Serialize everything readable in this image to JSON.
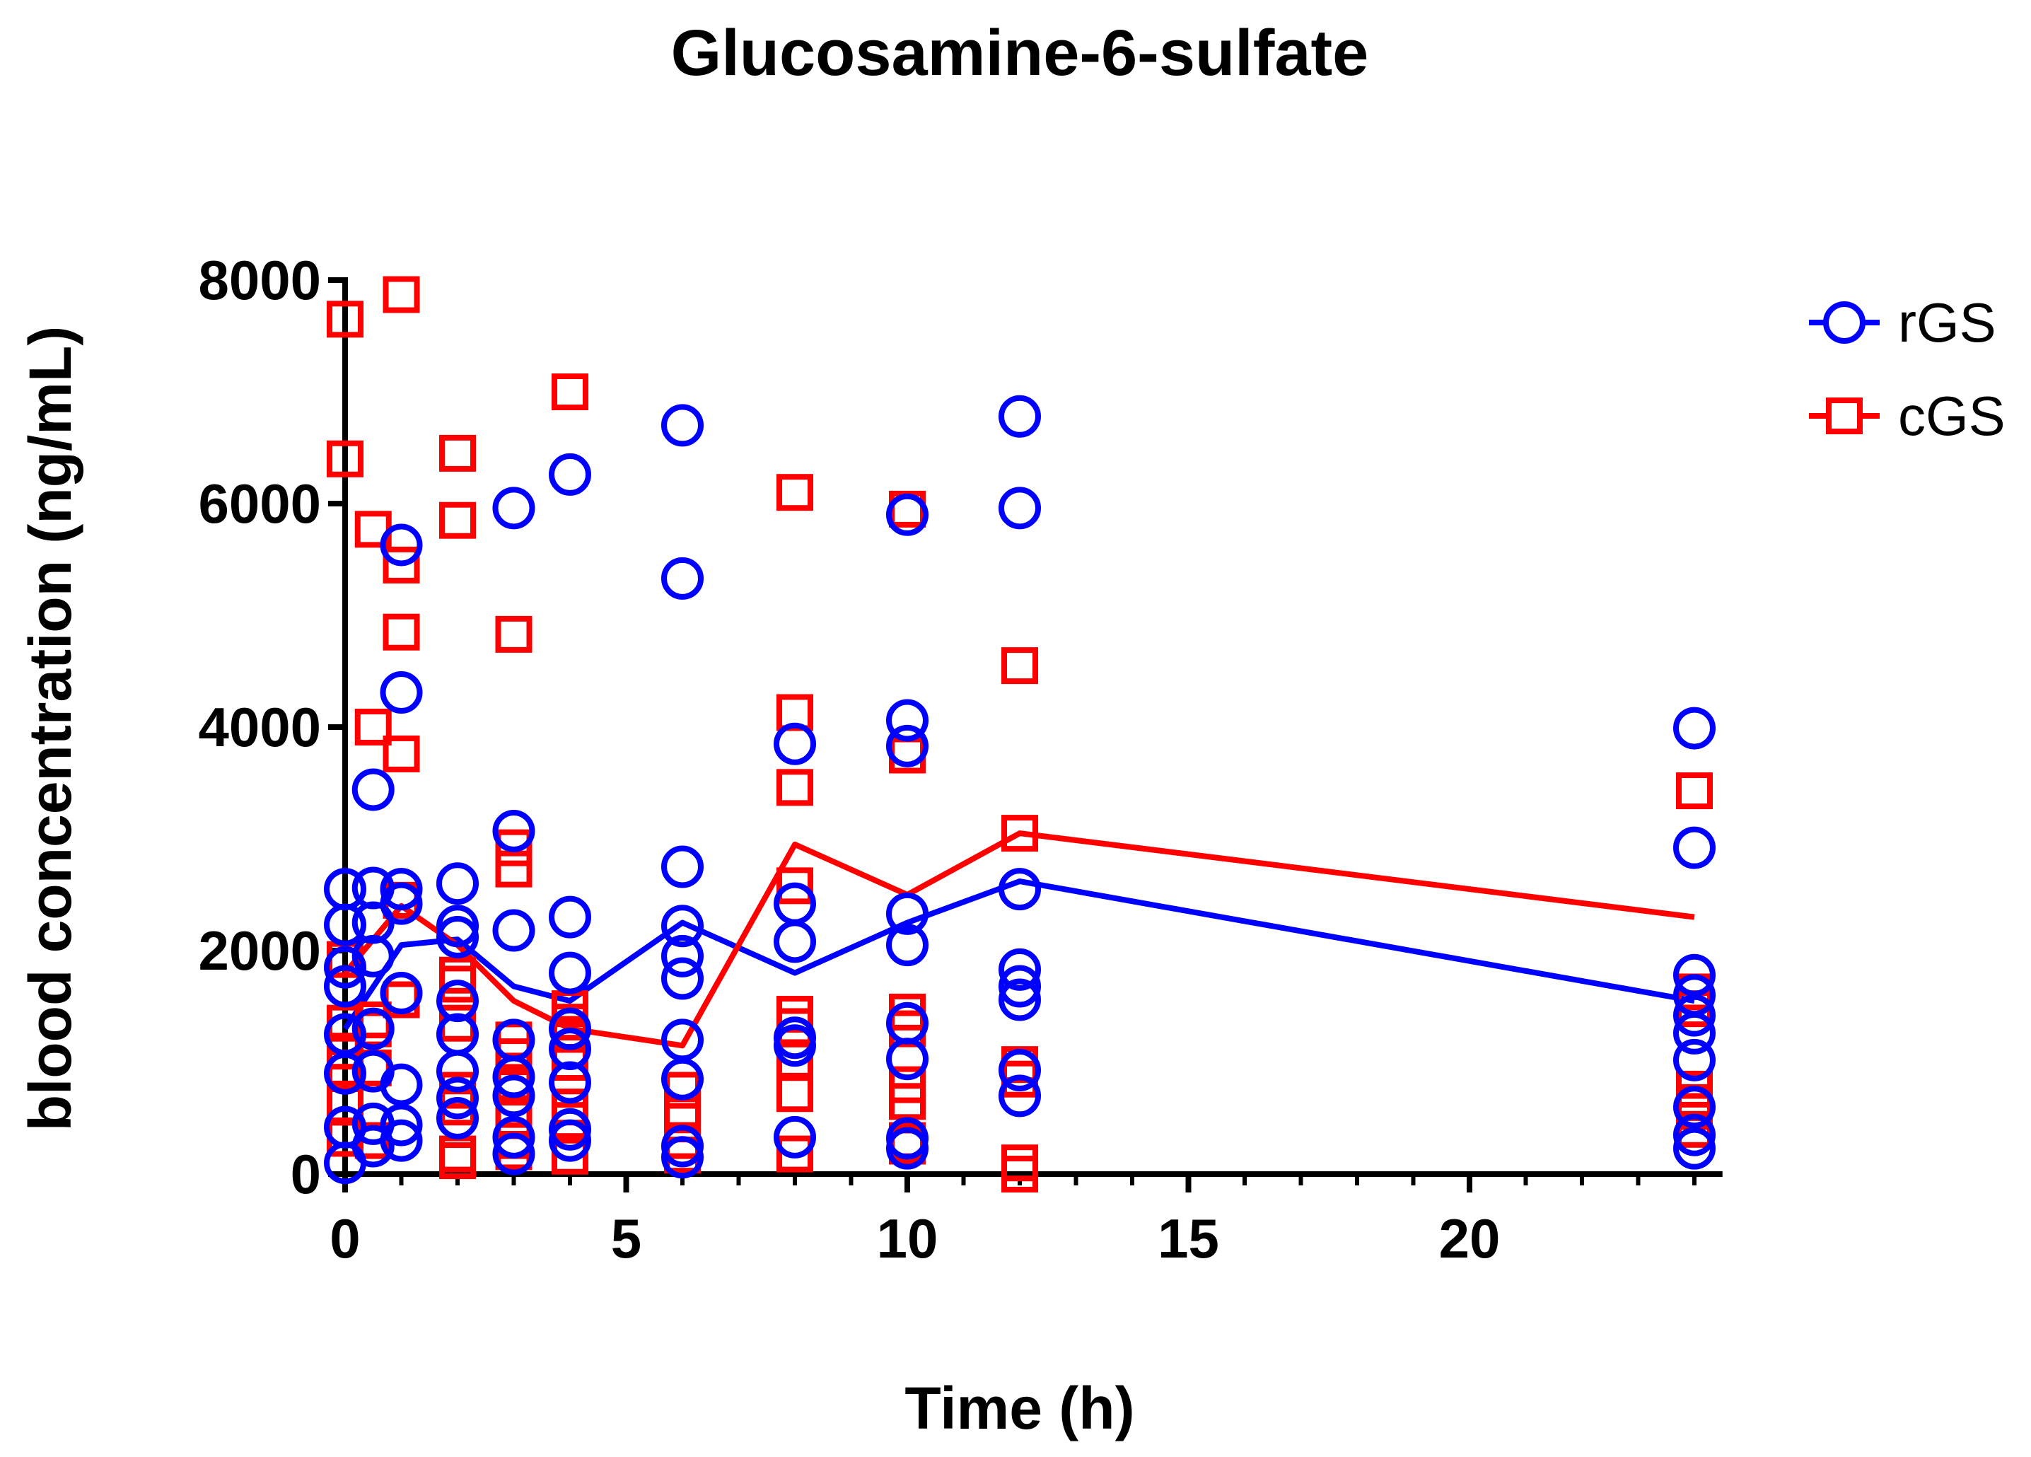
{
  "chart_data": {
    "type": "scatter",
    "title": "Glucosamine-6-sulfate",
    "xlabel": "Time (h)",
    "ylabel": "blood concentration (ng/mL)",
    "xlim": [
      0,
      24.5
    ],
    "ylim": [
      0,
      8000
    ],
    "x_ticks": [
      0,
      5,
      10,
      15,
      20
    ],
    "x_tick_labels": [
      "0",
      "5",
      "10",
      "15",
      "20"
    ],
    "y_ticks": [
      0,
      2000,
      4000,
      6000,
      8000
    ],
    "y_tick_labels": [
      "0",
      "2000",
      "4000",
      "6000",
      "8000"
    ],
    "x_minor_ticks": [
      1,
      2,
      3,
      4,
      6,
      7,
      8,
      9,
      11,
      12,
      13,
      14,
      16,
      17,
      18,
      19,
      21,
      22,
      23,
      24
    ],
    "legend_position": "top-right",
    "series": [
      {
        "name": "rGS",
        "color": "#0000ff",
        "marker": "circle",
        "mean_line": [
          [
            0,
            1300
          ],
          [
            1,
            2050
          ],
          [
            2,
            2100
          ],
          [
            3,
            1680
          ],
          [
            4,
            1550
          ],
          [
            6,
            2250
          ],
          [
            8,
            1800
          ],
          [
            10,
            2250
          ],
          [
            12,
            2620
          ],
          [
            24,
            1550
          ]
        ],
        "points": [
          [
            0,
            2550
          ],
          [
            0,
            2230
          ],
          [
            0,
            1850
          ],
          [
            0,
            1680
          ],
          [
            0,
            1250
          ],
          [
            0,
            900
          ],
          [
            0,
            420
          ],
          [
            0,
            100
          ],
          [
            0.5,
            3440
          ],
          [
            0.5,
            2560
          ],
          [
            0.5,
            2250
          ],
          [
            0.5,
            1950
          ],
          [
            0.5,
            1300
          ],
          [
            0.5,
            920
          ],
          [
            0.5,
            450
          ],
          [
            0.5,
            250
          ],
          [
            1,
            5630
          ],
          [
            1,
            4310
          ],
          [
            1,
            2550
          ],
          [
            1,
            2420
          ],
          [
            1,
            1620
          ],
          [
            1,
            800
          ],
          [
            1,
            440
          ],
          [
            1,
            300
          ],
          [
            2,
            2600
          ],
          [
            2,
            2220
          ],
          [
            2,
            2120
          ],
          [
            2,
            1550
          ],
          [
            2,
            1250
          ],
          [
            2,
            920
          ],
          [
            2,
            680
          ],
          [
            2,
            500
          ],
          [
            3,
            5960
          ],
          [
            3,
            3070
          ],
          [
            3,
            2180
          ],
          [
            3,
            1200
          ],
          [
            3,
            870
          ],
          [
            3,
            700
          ],
          [
            3,
            330
          ],
          [
            3,
            180
          ],
          [
            4,
            6260
          ],
          [
            4,
            2300
          ],
          [
            4,
            1800
          ],
          [
            4,
            1300
          ],
          [
            4,
            1120
          ],
          [
            4,
            820
          ],
          [
            4,
            400
          ],
          [
            4,
            300
          ],
          [
            6,
            6700
          ],
          [
            6,
            5330
          ],
          [
            6,
            2750
          ],
          [
            6,
            2220
          ],
          [
            6,
            1950
          ],
          [
            6,
            1750
          ],
          [
            6,
            1200
          ],
          [
            6,
            850
          ],
          [
            6,
            250
          ],
          [
            6,
            150
          ],
          [
            8,
            3850
          ],
          [
            8,
            2420
          ],
          [
            8,
            2080
          ],
          [
            8,
            1220
          ],
          [
            8,
            1150
          ],
          [
            8,
            330
          ],
          [
            10,
            5900
          ],
          [
            10,
            4060
          ],
          [
            10,
            3830
          ],
          [
            10,
            2330
          ],
          [
            10,
            2050
          ],
          [
            10,
            1350
          ],
          [
            10,
            1030
          ],
          [
            10,
            320
          ],
          [
            10,
            230
          ],
          [
            12,
            6780
          ],
          [
            12,
            5960
          ],
          [
            12,
            2550
          ],
          [
            12,
            1830
          ],
          [
            12,
            1680
          ],
          [
            12,
            1560
          ],
          [
            12,
            930
          ],
          [
            12,
            700
          ],
          [
            24,
            3990
          ],
          [
            24,
            2920
          ],
          [
            24,
            1780
          ],
          [
            24,
            1600
          ],
          [
            24,
            1420
          ],
          [
            24,
            1260
          ],
          [
            24,
            1020
          ],
          [
            24,
            600
          ],
          [
            24,
            350
          ],
          [
            24,
            230
          ]
        ]
      },
      {
        "name": "cGS",
        "color": "#ff0000",
        "marker": "square",
        "mean_line": [
          [
            0,
            1800
          ],
          [
            1,
            2400
          ],
          [
            2,
            2050
          ],
          [
            3,
            1550
          ],
          [
            4,
            1300
          ],
          [
            6,
            1150
          ],
          [
            8,
            2950
          ],
          [
            10,
            2500
          ],
          [
            12,
            3050
          ],
          [
            24,
            2300
          ]
        ],
        "points": [
          [
            0,
            7650
          ],
          [
            0,
            6400
          ],
          [
            0,
            1920
          ],
          [
            0,
            1350
          ],
          [
            0,
            1100
          ],
          [
            0,
            950
          ],
          [
            0,
            620
          ],
          [
            0,
            320
          ],
          [
            0.5,
            5770
          ],
          [
            0.5,
            4000
          ],
          [
            0.5,
            1380
          ],
          [
            0.5,
            1300
          ],
          [
            0.5,
            950
          ],
          [
            0.5,
            300
          ],
          [
            1,
            7870
          ],
          [
            1,
            5450
          ],
          [
            1,
            4850
          ],
          [
            1,
            3760
          ],
          [
            1,
            2450
          ],
          [
            1,
            1560
          ],
          [
            2,
            6450
          ],
          [
            2,
            5850
          ],
          [
            2,
            1780
          ],
          [
            2,
            1700
          ],
          [
            2,
            1350
          ],
          [
            2,
            750
          ],
          [
            2,
            600
          ],
          [
            2,
            180
          ],
          [
            2,
            120
          ],
          [
            3,
            4830
          ],
          [
            3,
            2920
          ],
          [
            3,
            2730
          ],
          [
            3,
            1200
          ],
          [
            3,
            1050
          ],
          [
            3,
            820
          ],
          [
            3,
            500
          ],
          [
            3,
            300
          ],
          [
            3,
            200
          ],
          [
            4,
            7000
          ],
          [
            4,
            1480
          ],
          [
            4,
            1360
          ],
          [
            4,
            1250
          ],
          [
            4,
            1000
          ],
          [
            4,
            600
          ],
          [
            4,
            480
          ],
          [
            4,
            160
          ],
          [
            6,
            750
          ],
          [
            6,
            530
          ],
          [
            6,
            300
          ],
          [
            6,
            170
          ],
          [
            8,
            6100
          ],
          [
            8,
            4130
          ],
          [
            8,
            3460
          ],
          [
            8,
            2580
          ],
          [
            8,
            1430
          ],
          [
            8,
            1320
          ],
          [
            8,
            1020
          ],
          [
            8,
            720
          ],
          [
            8,
            180
          ],
          [
            10,
            5950
          ],
          [
            10,
            3750
          ],
          [
            10,
            1450
          ],
          [
            10,
            1300
          ],
          [
            10,
            800
          ],
          [
            10,
            650
          ],
          [
            10,
            300
          ],
          [
            10,
            250
          ],
          [
            12,
            4550
          ],
          [
            12,
            3050
          ],
          [
            12,
            980
          ],
          [
            12,
            850
          ],
          [
            12,
            100
          ],
          [
            12,
            0
          ],
          [
            24,
            3430
          ],
          [
            24,
            1630
          ],
          [
            24,
            1480
          ],
          [
            24,
            760
          ],
          [
            24,
            640
          ],
          [
            24,
            560
          ],
          [
            24,
            400
          ]
        ]
      }
    ]
  }
}
